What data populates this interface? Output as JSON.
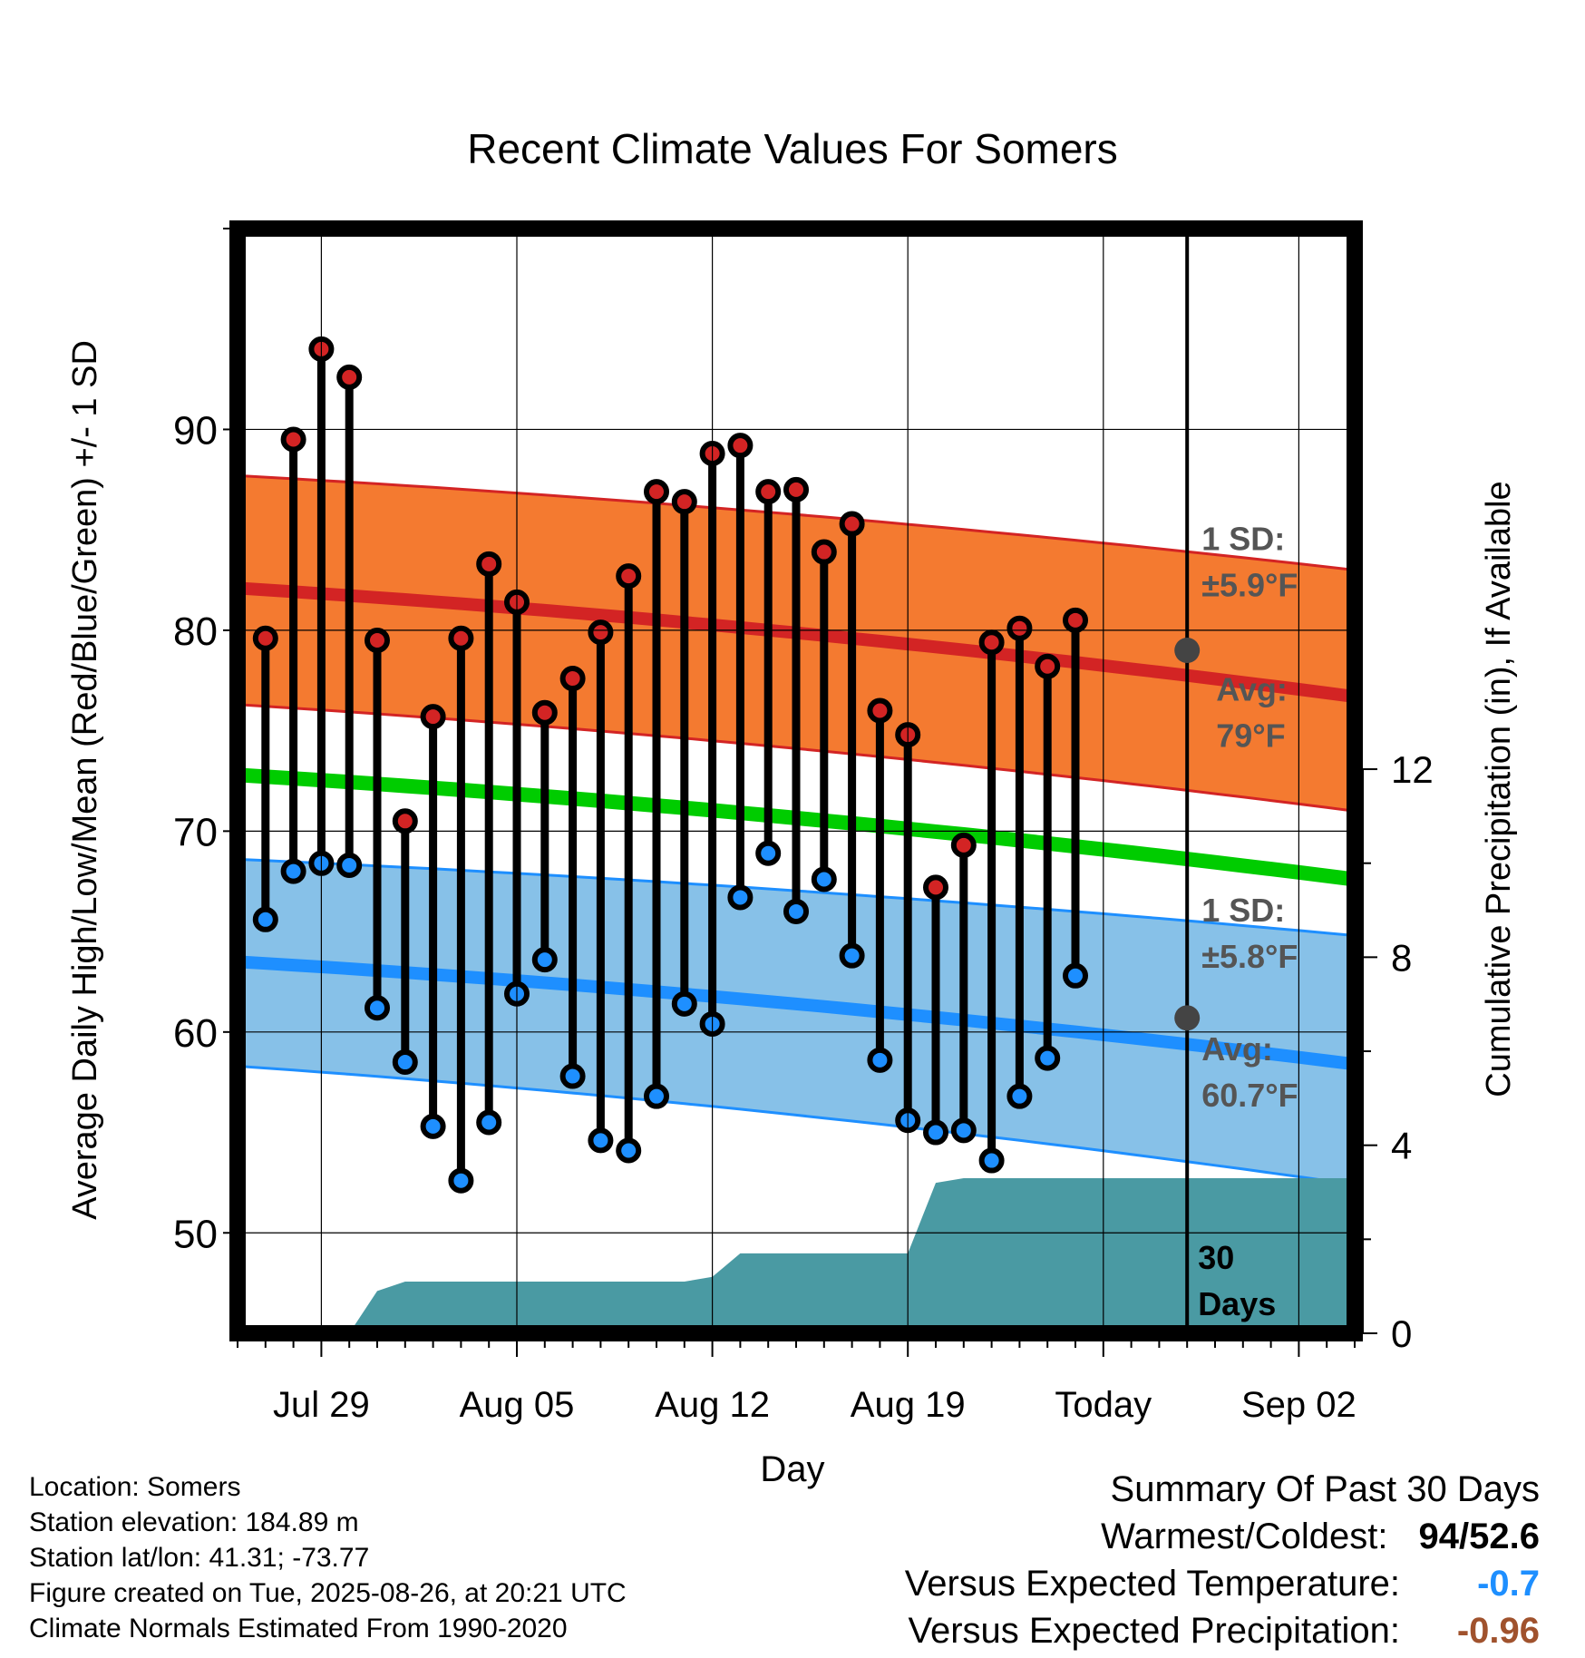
{
  "chart_data": {
    "type": "line",
    "title": "Recent Climate Values For Somers",
    "xlabel": "Day",
    "ylabel": "Average Daily High/Low/Mean (Red/Blue/Green) +/- 1 SD",
    "y2label": "Cumulative Precipitation (in), If Available",
    "x_ticks": [
      "Jul 29",
      "Aug 05",
      "Aug 12",
      "Aug 19",
      "Today",
      "Sep 02"
    ],
    "y_ticks": [
      50,
      60,
      70,
      80,
      90
    ],
    "y2_ticks": [
      0,
      4,
      8,
      12
    ],
    "ylim": [
      45,
      100
    ],
    "y2lim": [
      0,
      23.5
    ],
    "grid": true,
    "days": [
      "Jul 27",
      "Jul 28",
      "Jul 29",
      "Jul 30",
      "Jul 31",
      "Aug 01",
      "Aug 02",
      "Aug 03",
      "Aug 04",
      "Aug 05",
      "Aug 06",
      "Aug 07",
      "Aug 08",
      "Aug 09",
      "Aug 10",
      "Aug 11",
      "Aug 12",
      "Aug 13",
      "Aug 14",
      "Aug 15",
      "Aug 16",
      "Aug 17",
      "Aug 18",
      "Aug 19",
      "Aug 20",
      "Aug 21",
      "Aug 22",
      "Aug 23",
      "Aug 24",
      "Aug 25"
    ],
    "daily_high": [
      79.6,
      89.5,
      94.0,
      92.6,
      79.5,
      70.5,
      75.7,
      79.6,
      83.3,
      81.4,
      75.9,
      77.6,
      79.9,
      82.7,
      86.9,
      86.4,
      88.8,
      89.2,
      86.9,
      87.0,
      83.9,
      85.3,
      76.0,
      74.8,
      67.2,
      69.3,
      79.4,
      80.1,
      78.2,
      80.5
    ],
    "daily_low": [
      65.6,
      68.0,
      68.4,
      68.3,
      61.2,
      58.5,
      55.3,
      52.6,
      55.5,
      61.9,
      63.6,
      57.8,
      54.6,
      54.1,
      56.8,
      61.4,
      60.4,
      66.7,
      68.9,
      66.0,
      67.6,
      63.8,
      58.6,
      55.6,
      55.0,
      55.1,
      53.6,
      56.8,
      58.7,
      62.8
    ],
    "normal_high": {
      "start": "Jul 26",
      "end": "Sep 04",
      "mean": [
        82.1,
        76.7
      ],
      "upper": [
        87.7,
        83.0
      ],
      "lower": [
        76.3,
        71.0
      ],
      "label_sd": "1 SD:",
      "label_sd_value": "±5.9°F",
      "label_avg": "Avg:",
      "label_avg_value": "79°F",
      "today_value": 79.0
    },
    "normal_low": {
      "start": "Jul 26",
      "end": "Sep 04",
      "mean": [
        63.5,
        58.4
      ],
      "upper": [
        68.6,
        64.8
      ],
      "lower": [
        58.3,
        52.4
      ],
      "label_sd": "1 SD:",
      "label_sd_value": "±5.8°F",
      "label_avg": "Avg:",
      "label_avg_value": "60.7°F",
      "today_value": 60.7
    },
    "normal_mean": {
      "start": "Jul 26",
      "end": "Sep 04",
      "values": [
        72.8,
        67.6
      ]
    },
    "cumulative_precip": {
      "x": [
        "Jul 26",
        "Jul 30",
        "Jul 31",
        "Aug 01",
        "Aug 11",
        "Aug 12",
        "Aug 13",
        "Aug 19",
        "Aug 20",
        "Aug 21",
        "Sep 04"
      ],
      "values": [
        0,
        0,
        0.9,
        1.1,
        1.1,
        1.2,
        1.7,
        1.7,
        3.2,
        3.3,
        3.3
      ]
    },
    "today_marker": {
      "label": "30",
      "label2": "Days"
    },
    "colors": {
      "high_band": "#f47a30",
      "high_line": "#d32424",
      "low_band": "#87c1e8",
      "low_line": "#1e8fff",
      "mean_line": "#00cc00",
      "precip_fill": "#4a9aa3",
      "high_dot": "#d32424",
      "low_dot": "#1e8fff",
      "annotation": "#555555"
    }
  },
  "footer": {
    "location": "Location: Somers",
    "elevation": "Station elevation: 184.89 m",
    "latlon": "Station lat/lon: 41.31; -73.77",
    "created": "Figure created on Tue, 2025-08-26, at 20:21 UTC",
    "normals": "Climate Normals Estimated From 1990-2020"
  },
  "summary": {
    "heading": "Summary Of Past 30 Days",
    "warmest_coldest_label": "Warmest/Coldest:",
    "warmest_value": "94",
    "coldest_value": "52.6",
    "temp_label": "Versus Expected Temperature:",
    "temp_value": "-0.7",
    "temp_color": "#1e8fff",
    "precip_label": "Versus Expected Precipitation:",
    "precip_value": "-0.96",
    "precip_color": "#a0522d"
  }
}
